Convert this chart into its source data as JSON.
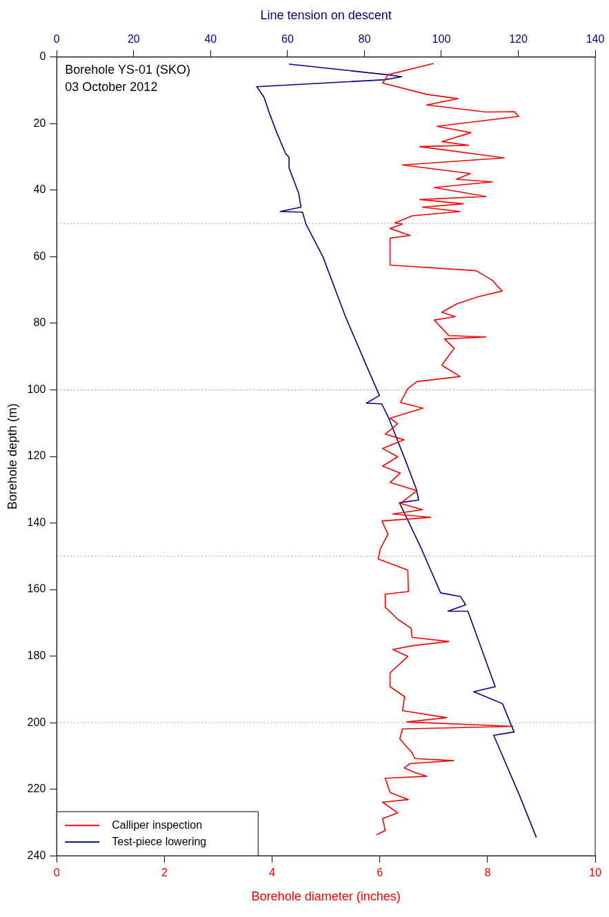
{
  "chart_data": {
    "type": "line",
    "title": "Borehole YS-01 (SKO)",
    "subtitle": "03 October 2012",
    "xlabel": "Borehole diameter (inches)",
    "x2label": "Line tension on descent",
    "ylabel": "Borehole depth (m)",
    "xlim": [
      0,
      10
    ],
    "xticks": [
      0,
      2,
      4,
      6,
      8,
      10
    ],
    "x2lim": [
      0,
      140
    ],
    "x2ticks": [
      0,
      20,
      40,
      60,
      80,
      100,
      120,
      140
    ],
    "ylim": [
      240,
      0
    ],
    "yticks": [
      0,
      20,
      40,
      60,
      80,
      100,
      120,
      140,
      160,
      180,
      200,
      220,
      240
    ],
    "grid": false,
    "legend": "bottom left",
    "marker": "none",
    "line_style": "solid",
    "ref_lines": [
      {
        "axis": "y",
        "value": 50,
        "color": "#999999",
        "line_style": "dotted"
      },
      {
        "axis": "y",
        "value": 100,
        "color": "#999999",
        "line_style": "dotted"
      },
      {
        "axis": "y",
        "value": 150,
        "color": "#999999",
        "line_style": "dotted"
      },
      {
        "axis": "y",
        "value": 200,
        "color": "#999999",
        "line_style": "dotted"
      }
    ],
    "series": [
      {
        "name": "Calliper inspection",
        "color": "#ff0000",
        "x": [
          7.0,
          6.15,
          6.05,
          6.87,
          7.45,
          6.87,
          7.97,
          8.5,
          8.58,
          7.06,
          7.69,
          7.15,
          7.65,
          6.74,
          8.31,
          6.42,
          7.68,
          7.42,
          8.09,
          7.01,
          7.97,
          6.74,
          7.55,
          6.79,
          7.49,
          6.6,
          6.28,
          6.42,
          6.19,
          6.56,
          6.19,
          6.19,
          7.79,
          8.1,
          8.16,
          8.27,
          7.83,
          7.42,
          7.15,
          7.4,
          7.01,
          7.28,
          7.97,
          7.2,
          7.38,
          7.15,
          7.49,
          6.69,
          6.52,
          6.38,
          6.8,
          6.19,
          6.33,
          6.1,
          6.45,
          6.05,
          6.33,
          6.05,
          6.38,
          6.19,
          6.69,
          6.38,
          6.79,
          6.24,
          6.94,
          6.04,
          6.15,
          6.01,
          5.97,
          6.15,
          6.52,
          6.53,
          6.1,
          6.1,
          6.33,
          6.58,
          6.6,
          7.28,
          6.6,
          6.24,
          6.52,
          6.19,
          6.19,
          6.46,
          6.42,
          7.24,
          6.5,
          8.47,
          6.42,
          6.37,
          6.6,
          6.65,
          7.37,
          6.56,
          6.45,
          6.65,
          6.87,
          6.1,
          6.19,
          6.53,
          6.05,
          6.33,
          6.05,
          6.1,
          5.94
        ],
        "values": [
          1.9,
          5.3,
          7.8,
          11.2,
          12.5,
          14.4,
          16.5,
          16.4,
          17.8,
          20.8,
          22.7,
          25.4,
          26.5,
          26.9,
          30.3,
          32.4,
          35.0,
          36.7,
          37.5,
          39.2,
          41.9,
          42.8,
          44.1,
          45.1,
          46.4,
          47.7,
          49.8,
          50.2,
          51.5,
          53.6,
          54.4,
          62.5,
          64.2,
          67.2,
          68.4,
          70.3,
          72.0,
          74.2,
          76.7,
          78.0,
          79.0,
          83.7,
          84.1,
          84.7,
          87.5,
          92.6,
          96.0,
          97.5,
          99.6,
          103.8,
          105.5,
          108.5,
          110.2,
          113.3,
          115.0,
          117.6,
          120.1,
          122.9,
          125.0,
          127.8,
          130.3,
          134.1,
          136.0,
          137.3,
          138.3,
          139.4,
          143.4,
          147.7,
          150.8,
          151.9,
          154.2,
          160.6,
          161.4,
          165.3,
          168.9,
          171.6,
          174.4,
          175.6,
          176.9,
          178.0,
          180.1,
          185.0,
          189.2,
          192.2,
          196.4,
          198.5,
          199.8,
          201.1,
          201.9,
          204.9,
          209.1,
          210.8,
          211.4,
          212.3,
          213.6,
          215.0,
          216.1,
          216.7,
          221.0,
          223.1,
          223.9,
          227.1,
          228.8,
          232.4,
          233.7
        ]
      },
      {
        "name": "Test-piece lowering",
        "color": "#000080",
        "axis": "x2",
        "x": [
          60.4,
          85.9,
          89.7,
          85.3,
          52.0,
          53.9,
          55.3,
          57.2,
          59.5,
          60.4,
          60.4,
          62.9,
          63.5,
          58.1,
          63.9,
          64.8,
          69.2,
          75.0,
          80.7,
          83.9,
          80.5,
          84.5,
          86.4,
          91.0,
          93.5,
          94.1,
          89.1,
          94.8,
          99.8,
          105.0,
          106.3,
          101.7,
          106.9,
          114.0,
          108.4,
          115.9,
          118.9,
          113.6,
          120.3,
          124.7
        ],
        "values": [
          2.1,
          5.3,
          5.9,
          6.8,
          8.9,
          12.1,
          16.9,
          22.7,
          29.0,
          30.1,
          33.3,
          40.9,
          45.1,
          46.4,
          46.6,
          50.2,
          60.0,
          77.8,
          93.2,
          101.7,
          104.0,
          104.2,
          108.7,
          122.2,
          129.9,
          133.1,
          133.9,
          147.7,
          161.0,
          162.1,
          164.6,
          166.5,
          166.5,
          189.2,
          190.7,
          194.3,
          202.8,
          203.8,
          221.8,
          234.5
        ]
      }
    ]
  }
}
